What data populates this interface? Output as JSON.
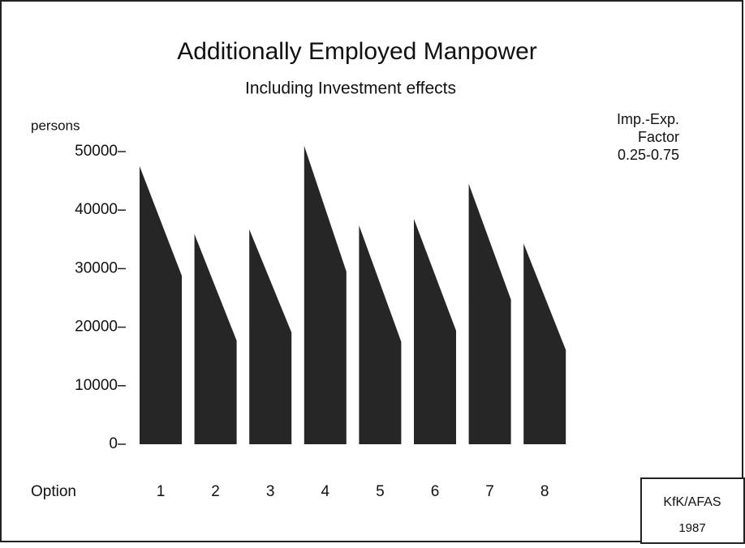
{
  "chart_data": {
    "type": "sloped-bar",
    "title": "Additionally Employed Manpower",
    "subtitle": "Including Investment effects",
    "y_label": "persons",
    "x_label": "Option",
    "annotation": [
      "Imp.-Exp.",
      "Factor",
      "0.25-0.75"
    ],
    "source": [
      "KfK/AFAS",
      "1987"
    ],
    "categories": [
      "1",
      "2",
      "3",
      "4",
      "5",
      "6",
      "7",
      "8"
    ],
    "series": [
      {
        "color": "#262626",
        "values": [
          47500,
          35900,
          36700,
          51000,
          37400,
          38500,
          44500,
          34300
        ]
      },
      {
        "color": "#262626",
        "values": [
          28800,
          17700,
          19100,
          29500,
          17500,
          19400,
          24700,
          16100
        ]
      }
    ],
    "ylim": [
      0,
      50000
    ],
    "yticks": [
      0,
      10000,
      20000,
      30000,
      40000,
      50000
    ]
  }
}
